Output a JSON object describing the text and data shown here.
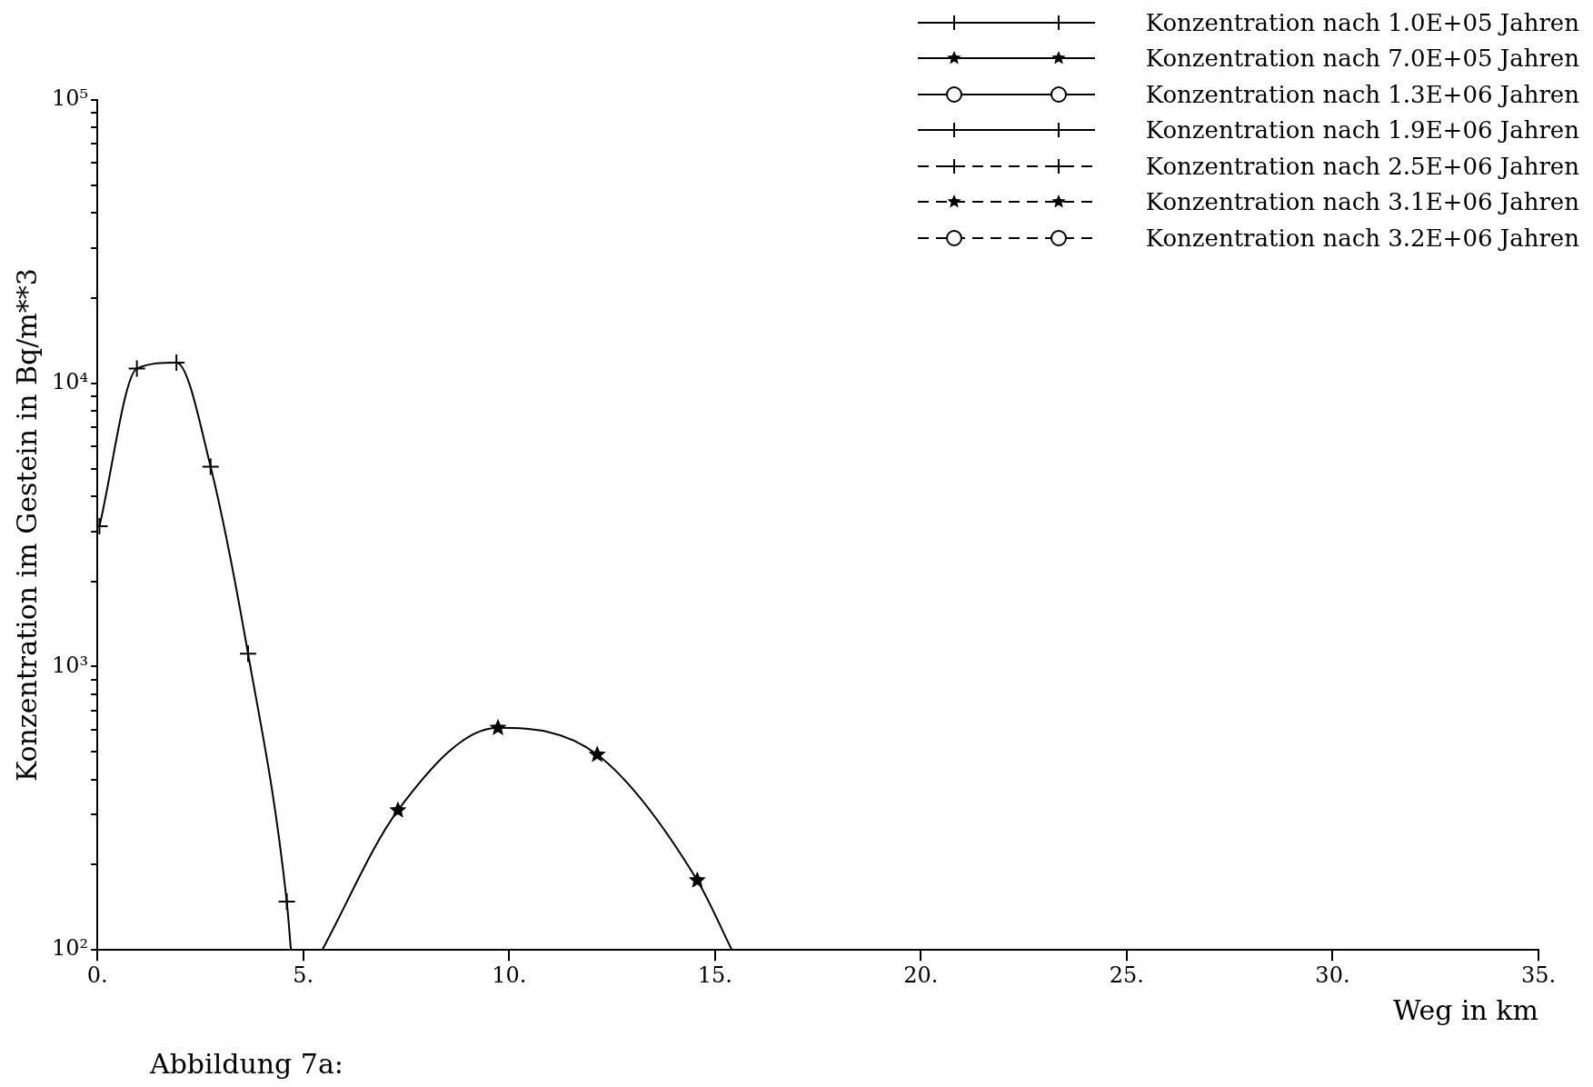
{
  "chart_data": {
    "type": "line",
    "ylabel": "Konzentration im Gestein in Bq/m**3",
    "xlabel": "Weg in km",
    "log": "y",
    "grid": false,
    "legend": "top right",
    "xlim": [
      0,
      35
    ],
    "xticks": [
      {
        "value": 0,
        "label": "0."
      },
      {
        "value": 5,
        "label": "5."
      },
      {
        "value": 10,
        "label": "10."
      },
      {
        "value": 15,
        "label": "15."
      },
      {
        "value": 20,
        "label": "20."
      },
      {
        "value": 25,
        "label": "25."
      },
      {
        "value": 30,
        "label": "30."
      },
      {
        "value": 35,
        "label": "35."
      }
    ],
    "ylim": [
      100,
      100000
    ],
    "yticks": [
      {
        "value": 100,
        "label": "10²"
      },
      {
        "value": 200,
        "label": null
      },
      {
        "value": 300,
        "label": null
      },
      {
        "value": 400,
        "label": null
      },
      {
        "value": 500,
        "label": null
      },
      {
        "value": 600,
        "label": null
      },
      {
        "value": 700,
        "label": null
      },
      {
        "value": 800,
        "label": null
      },
      {
        "value": 900,
        "label": null
      },
      {
        "value": 1000,
        "label": "10³"
      },
      {
        "value": 2000,
        "label": null
      },
      {
        "value": 3000,
        "label": null
      },
      {
        "value": 4000,
        "label": null
      },
      {
        "value": 5000,
        "label": null
      },
      {
        "value": 6000,
        "label": null
      },
      {
        "value": 7000,
        "label": null
      },
      {
        "value": 8000,
        "label": null
      },
      {
        "value": 9000,
        "label": null
      },
      {
        "value": 10000,
        "label": "10⁴"
      },
      {
        "value": 20000,
        "label": null
      },
      {
        "value": 30000,
        "label": null
      },
      {
        "value": 40000,
        "label": null
      },
      {
        "value": 50000,
        "label": null
      },
      {
        "value": 60000,
        "label": null
      },
      {
        "value": 70000,
        "label": null
      },
      {
        "value": 80000,
        "label": null
      },
      {
        "value": 90000,
        "label": null
      },
      {
        "value": 100000,
        "label": "10⁵"
      }
    ],
    "annotations": [
      "Abbildung 7a:"
    ],
    "series": [
      {
        "name": "Konzentration nach 1.0E+05 Jahren",
        "color": "#000000",
        "marker": "cross",
        "line_style": "solid",
        "x": [
          0.05,
          0.96,
          1.92,
          2.75,
          3.66,
          4.6,
          4.7
        ],
        "values": [
          3130,
          11270,
          11830,
          5080,
          1110,
          148,
          100
        ]
      },
      {
        "name": "Konzentration nach 7.0E+05 Jahren",
        "color": "#000000",
        "marker": "star",
        "line_style": "solid",
        "x": [
          5.46,
          7.3,
          9.73,
          12.14,
          14.57,
          15.41
        ],
        "values": [
          100,
          311,
          608,
          489,
          176,
          100
        ]
      },
      {
        "name": "Konzentration nach 1.3E+06 Jahren",
        "color": "#000000",
        "marker": "circle",
        "line_style": "solid"
      },
      {
        "name": "Konzentration nach 1.9E+06 Jahren",
        "color": "#000000",
        "marker": "cross",
        "line_style": "solid"
      },
      {
        "name": "Konzentration nach 2.5E+06 Jahren",
        "color": "#000000",
        "marker": "cross",
        "line_style": "dashed"
      },
      {
        "name": "Konzentration nach 3.1E+06 Jahren",
        "color": "#000000",
        "marker": "star",
        "line_style": "dashed"
      },
      {
        "name": "Konzentration nach 3.2E+06 Jahren",
        "color": "#000000",
        "marker": "circle",
        "line_style": "dashed"
      }
    ]
  }
}
